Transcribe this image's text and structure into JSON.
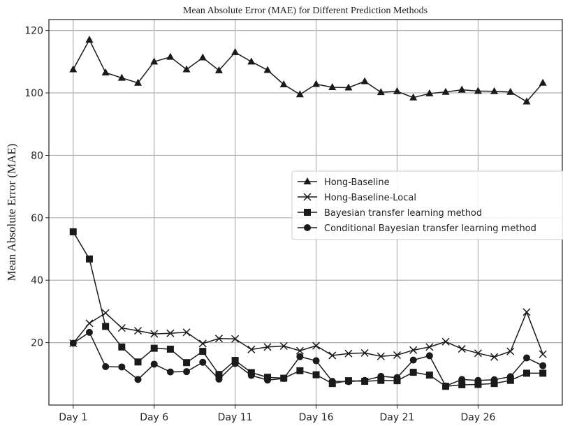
{
  "chart_data": {
    "type": "line",
    "title": "Mean Absolute Error (MAE) for Different Prediction Methods",
    "ylabel": "Mean Absolute Error (MAE)",
    "categories": [
      "Day 1",
      null,
      null,
      null,
      null,
      "Day 6",
      null,
      null,
      null,
      null,
      "Day 11",
      null,
      null,
      null,
      null,
      "Day 16",
      null,
      null,
      null,
      null,
      "Day 21",
      null,
      null,
      null,
      null,
      "Day 26",
      null,
      null,
      null,
      null
    ],
    "series": [
      {
        "name": "Hong-Baseline",
        "color": "#1a1a1a",
        "marker": "triangle",
        "values": [
          107.5,
          117,
          106.5,
          104.8,
          103.2,
          110,
          111.5,
          107.5,
          111.3,
          107.2,
          113,
          110,
          107.3,
          102.7,
          99.5,
          102.8,
          101.8,
          101.7,
          103.7,
          100.2,
          100.5,
          98.5,
          99.8,
          100.3,
          101,
          100.6,
          100.5,
          100.3,
          97.2,
          103.2
        ]
      },
      {
        "name": "Hong-Baseline-Local",
        "color": "#1a1a1a",
        "marker": "x",
        "values": [
          19.8,
          26.2,
          29.5,
          24.7,
          23.8,
          22.8,
          23,
          23.3,
          19.7,
          21.3,
          21.2,
          17.8,
          18.6,
          18.9,
          17.4,
          19,
          15.9,
          16.5,
          16.7,
          15.6,
          16,
          17.6,
          18.6,
          20.3,
          18,
          16.6,
          15.4,
          17.2,
          29.8,
          16.3
        ]
      },
      {
        "name": "Bayesian transfer learning method",
        "color": "#1a1a1a",
        "marker": "square",
        "values": [
          55.5,
          46.8,
          25.2,
          18.6,
          13.8,
          18.2,
          17.9,
          13.6,
          17.2,
          9.8,
          14.3,
          10.4,
          8.9,
          8.6,
          11,
          9.7,
          6.9,
          7.8,
          7.6,
          7.9,
          7.8,
          10.5,
          9.6,
          6,
          6.5,
          6.6,
          6.9,
          7.9,
          10.2,
          10.2
        ]
      },
      {
        "name": "Conditional Bayesian transfer learning method",
        "color": "#1a1a1a",
        "marker": "circle",
        "values": [
          19.8,
          23.3,
          12.3,
          12.2,
          8.2,
          13.1,
          10.6,
          10.7,
          13.7,
          8.3,
          13.3,
          9.5,
          8,
          8.5,
          15.5,
          14.2,
          7.6,
          7.5,
          7.9,
          9.2,
          8.8,
          14.4,
          15.8,
          6.1,
          8.2,
          7.9,
          8.1,
          9.1,
          15.1,
          12.6
        ]
      }
    ],
    "ylim": [
      0,
      123.5
    ],
    "yticks": [
      20,
      40,
      60,
      80,
      100,
      120
    ],
    "grid": true,
    "legend": "center right"
  }
}
